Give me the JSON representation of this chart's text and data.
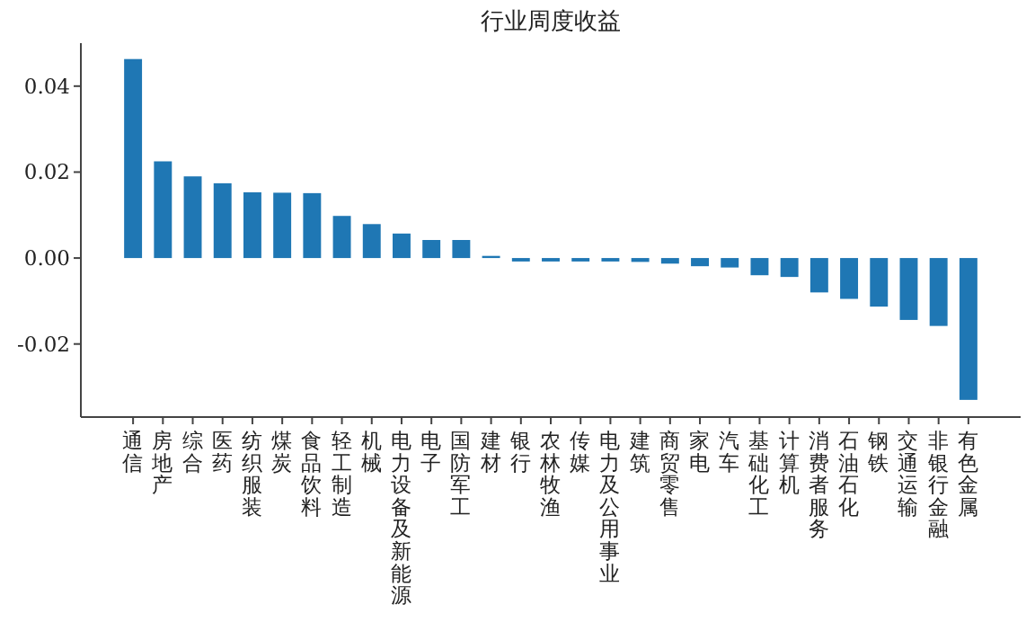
{
  "chart_data": {
    "type": "bar",
    "title": "行业周度收益",
    "categories": [
      "通信",
      "房地产",
      "综合",
      "医药",
      "纺织服装",
      "煤炭",
      "食品饮料",
      "轻工制造",
      "机械",
      "电力设备及新能源",
      "电子",
      "国防军工",
      "建材",
      "银行",
      "农林牧渔",
      "传媒",
      "电力及公用事业",
      "建筑",
      "商贸零售",
      "家电",
      "汽车",
      "基础化工",
      "计算机",
      "消费者服务",
      "石油石化",
      "钢铁",
      "交通运输",
      "非银行金融",
      "有色金属"
    ],
    "values": [
      0.0463,
      0.0225,
      0.019,
      0.0174,
      0.0153,
      0.0152,
      0.0151,
      0.0098,
      0.0079,
      0.0057,
      0.0042,
      0.0042,
      0.0005,
      -0.0008,
      -0.0008,
      -0.0008,
      -0.0008,
      -0.0009,
      -0.0013,
      -0.0019,
      -0.0022,
      -0.004,
      -0.0044,
      -0.008,
      -0.0095,
      -0.0113,
      -0.0144,
      -0.0158,
      -0.033
    ],
    "color": "#1f77b4",
    "ylim": [
      -0.037,
      0.05
    ],
    "yticks": [
      -0.02,
      {
        "value": 0,
        "label": "0.00"
      },
      0.02,
      0.04
    ],
    "grid": false
  }
}
